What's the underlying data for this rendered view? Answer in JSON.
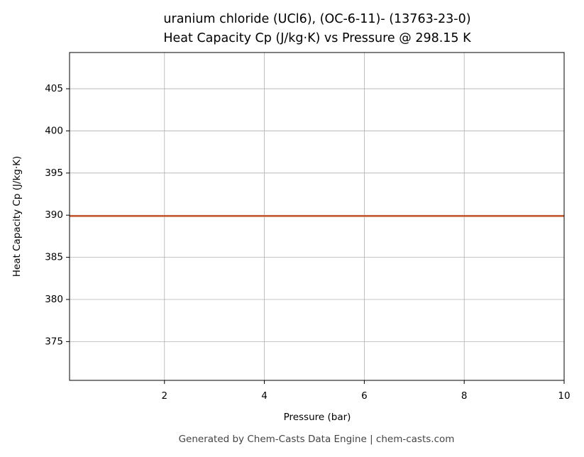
{
  "chart_data": {
    "type": "line",
    "title": [
      "uranium chloride (UCl6), (OC-6-11)- (13763-23-0)",
      "Heat Capacity Cp (J/kg·K) vs Pressure @ 298.15 K"
    ],
    "x_label": "Pressure (bar)",
    "y_label": "Heat Capacity Cp (J/kg·K)",
    "x": [
      0.1,
      10
    ],
    "series": [
      {
        "name": "Cp",
        "color": "#c8542a",
        "values": [
          389.9,
          389.9
        ]
      }
    ],
    "xlim": [
      0.1,
      10
    ],
    "xticks": [
      2,
      4,
      6,
      8,
      10
    ],
    "ylim": [
      370.4,
      409.3
    ],
    "yticks": [
      375,
      380,
      385,
      390,
      395,
      400,
      405
    ],
    "grid": true,
    "footer": "Generated by Chem-Casts Data Engine | chem-casts.com"
  }
}
